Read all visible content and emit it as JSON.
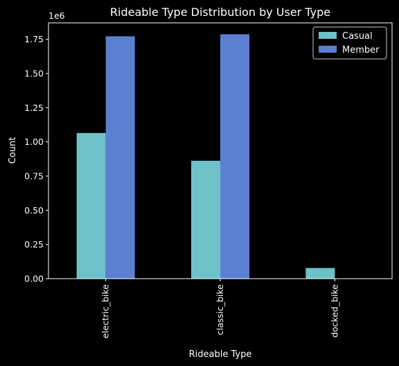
{
  "chart_data": {
    "type": "bar",
    "title": "Rideable Type Distribution by User Type",
    "xlabel": "Rideable Type",
    "ylabel": "Count",
    "y_multiplier_label": "1e6",
    "categories": [
      "electric_bike",
      "classic_bike",
      "docked_bike"
    ],
    "series": [
      {
        "name": "Casual",
        "color": "#6cc2c8",
        "values": [
          1065000,
          862000,
          78000
        ]
      },
      {
        "name": "Member",
        "color": "#5b7fd1",
        "values": [
          1772000,
          1787000,
          0
        ]
      }
    ],
    "ylim": [
      0,
      1870000
    ],
    "yticks": [
      0,
      250000,
      500000,
      750000,
      1000000,
      1250000,
      1500000,
      1750000
    ],
    "ytick_labels": [
      "0.00",
      "0.25",
      "0.50",
      "0.75",
      "1.00",
      "1.25",
      "1.50",
      "1.75"
    ],
    "legend_position": "top-right",
    "grid": false
  }
}
